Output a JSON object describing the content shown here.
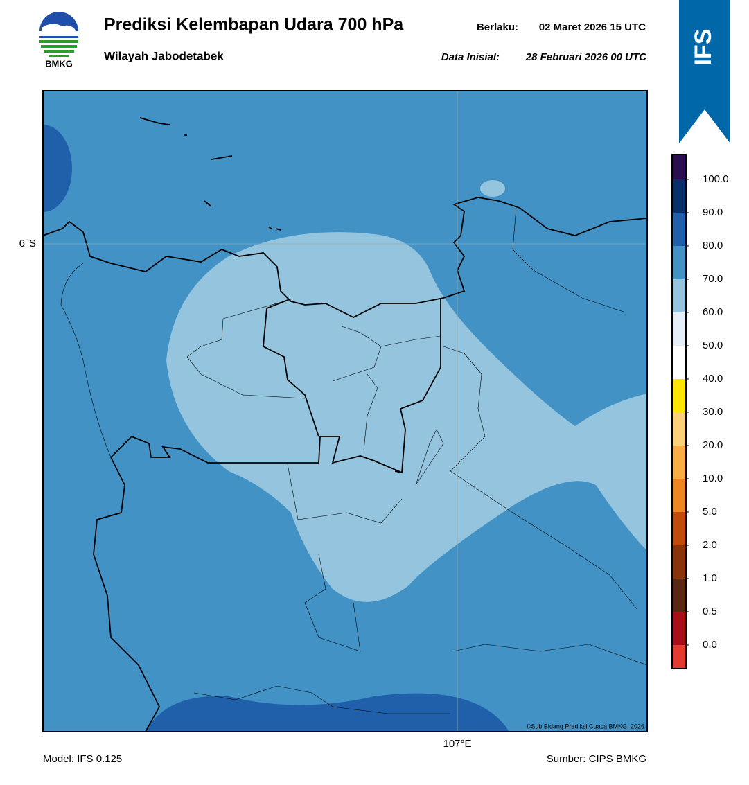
{
  "header": {
    "title": "Prediksi Kelembapan Udara 700 hPa",
    "subtitle": "Wilayah Jabodetabek",
    "valid_label": "Berlaku:",
    "valid_time": "02 Maret 2026 15 UTC",
    "init_label": "Data Inisial:",
    "init_time": "28 Februari 2026 00 UTC",
    "logo_text": "BMKG",
    "badge": "IFS"
  },
  "map": {
    "lat_label": "6°S",
    "lon_label": "107°E",
    "copyright": "©Sub Bidang Prediksi Cuaca BMKG, 2026"
  },
  "colorbar": {
    "labels": [
      "0.0",
      "0.5",
      "1.0",
      "2.0",
      "5.0",
      "10.0",
      "20.0",
      "30.0",
      "40.0",
      "50.0",
      "60.0",
      "70.0",
      "80.0",
      "90.0",
      "100.0"
    ],
    "colors": [
      "#e53a2f",
      "#a80f18",
      "#5a2812",
      "#8a3509",
      "#c04b0b",
      "#ee8722",
      "#f9ad44",
      "#fdd07a",
      "#ffe500",
      "#ffffff",
      "#e6eef7",
      "#94c4de",
      "#4292c6",
      "#2060aa",
      "#08306b",
      "#2a0e50"
    ]
  },
  "footer": {
    "model": "Model: IFS 0.125",
    "source": "Sumber: CIPS BMKG"
  }
}
